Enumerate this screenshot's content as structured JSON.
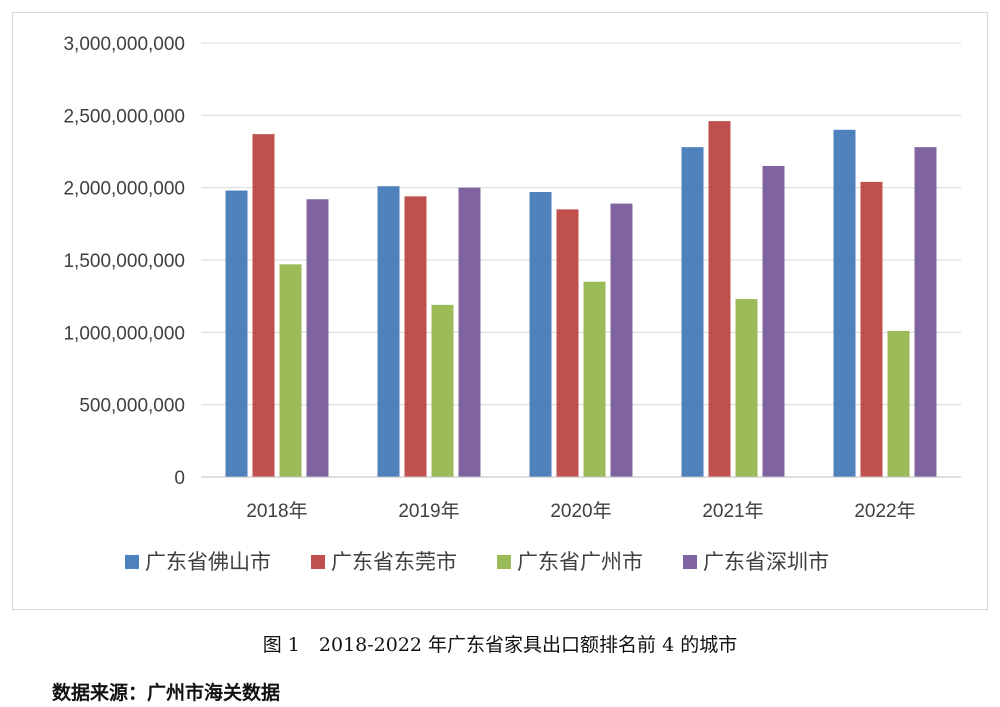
{
  "chart_data": {
    "type": "bar",
    "categories": [
      "2018年",
      "2019年",
      "2020年",
      "2021年",
      "2022年"
    ],
    "series": [
      {
        "name": "广东省佛山市",
        "color": "#4f81bd",
        "values": [
          1980000000,
          2010000000,
          1970000000,
          2280000000,
          2400000000
        ]
      },
      {
        "name": "广东省东莞市",
        "color": "#c0504d",
        "values": [
          2370000000,
          1940000000,
          1850000000,
          2460000000,
          2040000000
        ]
      },
      {
        "name": "广东省广州市",
        "color": "#9bbb59",
        "values": [
          1470000000,
          1190000000,
          1350000000,
          1230000000,
          1010000000
        ]
      },
      {
        "name": "广东省深圳市",
        "color": "#8064a2",
        "values": [
          1920000000,
          2000000000,
          1890000000,
          2150000000,
          2280000000
        ]
      }
    ],
    "ylim": [
      0,
      3000000000
    ],
    "yticks": [
      0,
      500000000,
      1000000000,
      1500000000,
      2000000000,
      2500000000,
      3000000000
    ],
    "ytick_labels": [
      "0",
      "500,000,000",
      "1,000,000,000",
      "1,500,000,000",
      "2,000,000,000",
      "2,500,000,000",
      "3,000,000,000"
    ],
    "grid": true,
    "legend": "bottom"
  },
  "caption": "图 1　2018-2022 年广东省家具出口额排名前 4 的城市",
  "source": "数据来源：广州市海关数据"
}
